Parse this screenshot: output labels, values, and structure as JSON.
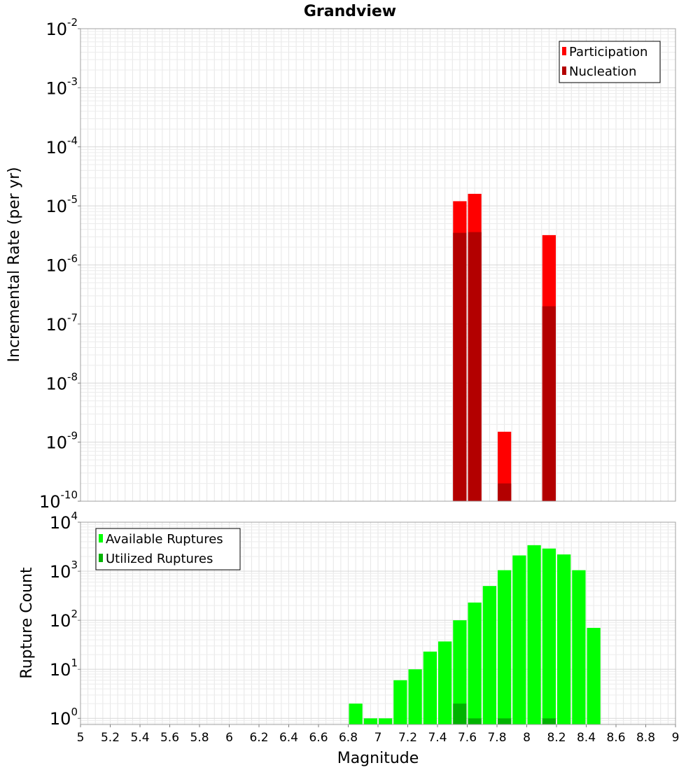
{
  "chart_data": [
    {
      "type": "bar",
      "title": "Grandview",
      "xlabel": "",
      "ylabel": "Incremental Rate (per yr)",
      "yscale": "log",
      "xlim": [
        5,
        9
      ],
      "ylim": [
        1e-10,
        0.01
      ],
      "y_tick_exponents": [
        "-2",
        "-3",
        "-4",
        "-5",
        "-6",
        "-7",
        "-8",
        "-9",
        "-10"
      ],
      "bin_width": 0.1,
      "legend_position": "top-right",
      "series": [
        {
          "name": "Participation",
          "color": "#ff0000",
          "x": [
            7.55,
            7.65,
            7.85,
            8.15
          ],
          "values": [
            1.2e-05,
            1.6e-05,
            1.5e-09,
            3.2e-06
          ]
        },
        {
          "name": "Nucleation",
          "color": "#b30000",
          "x": [
            7.55,
            7.65,
            7.85,
            8.15
          ],
          "values": [
            3.5e-06,
            3.6e-06,
            2e-10,
            2e-07
          ]
        }
      ]
    },
    {
      "type": "bar",
      "title": "",
      "xlabel": "Magnitude",
      "ylabel": "Rupture Count",
      "yscale": "log",
      "xlim": [
        5,
        9
      ],
      "ylim": [
        0.75,
        10000
      ],
      "y_tick_exponents": [
        "4",
        "3",
        "2",
        "1",
        "0"
      ],
      "x_ticks": [
        "5",
        "5.2",
        "5.4",
        "5.6",
        "5.8",
        "6",
        "6.2",
        "6.4",
        "6.6",
        "6.8",
        "7",
        "7.2",
        "7.4",
        "7.6",
        "7.8",
        "8",
        "8.2",
        "8.4",
        "8.6",
        "8.8",
        "9"
      ],
      "bin_width": 0.1,
      "legend_position": "top-left",
      "series": [
        {
          "name": "Available Ruptures",
          "color": "#00ff00",
          "x": [
            6.85,
            6.95,
            7.05,
            7.15,
            7.25,
            7.35,
            7.45,
            7.55,
            7.65,
            7.75,
            7.85,
            7.95,
            8.05,
            8.15,
            8.25,
            8.35,
            8.45
          ],
          "values": [
            2,
            1,
            1,
            6,
            10,
            23,
            37,
            100,
            230,
            500,
            1050,
            2100,
            3400,
            2900,
            2200,
            1050,
            70
          ]
        },
        {
          "name": "Utilized Ruptures",
          "color": "#00b300",
          "x": [
            7.55,
            7.65,
            7.85,
            8.15
          ],
          "values": [
            2,
            1,
            1,
            1
          ]
        }
      ]
    }
  ]
}
